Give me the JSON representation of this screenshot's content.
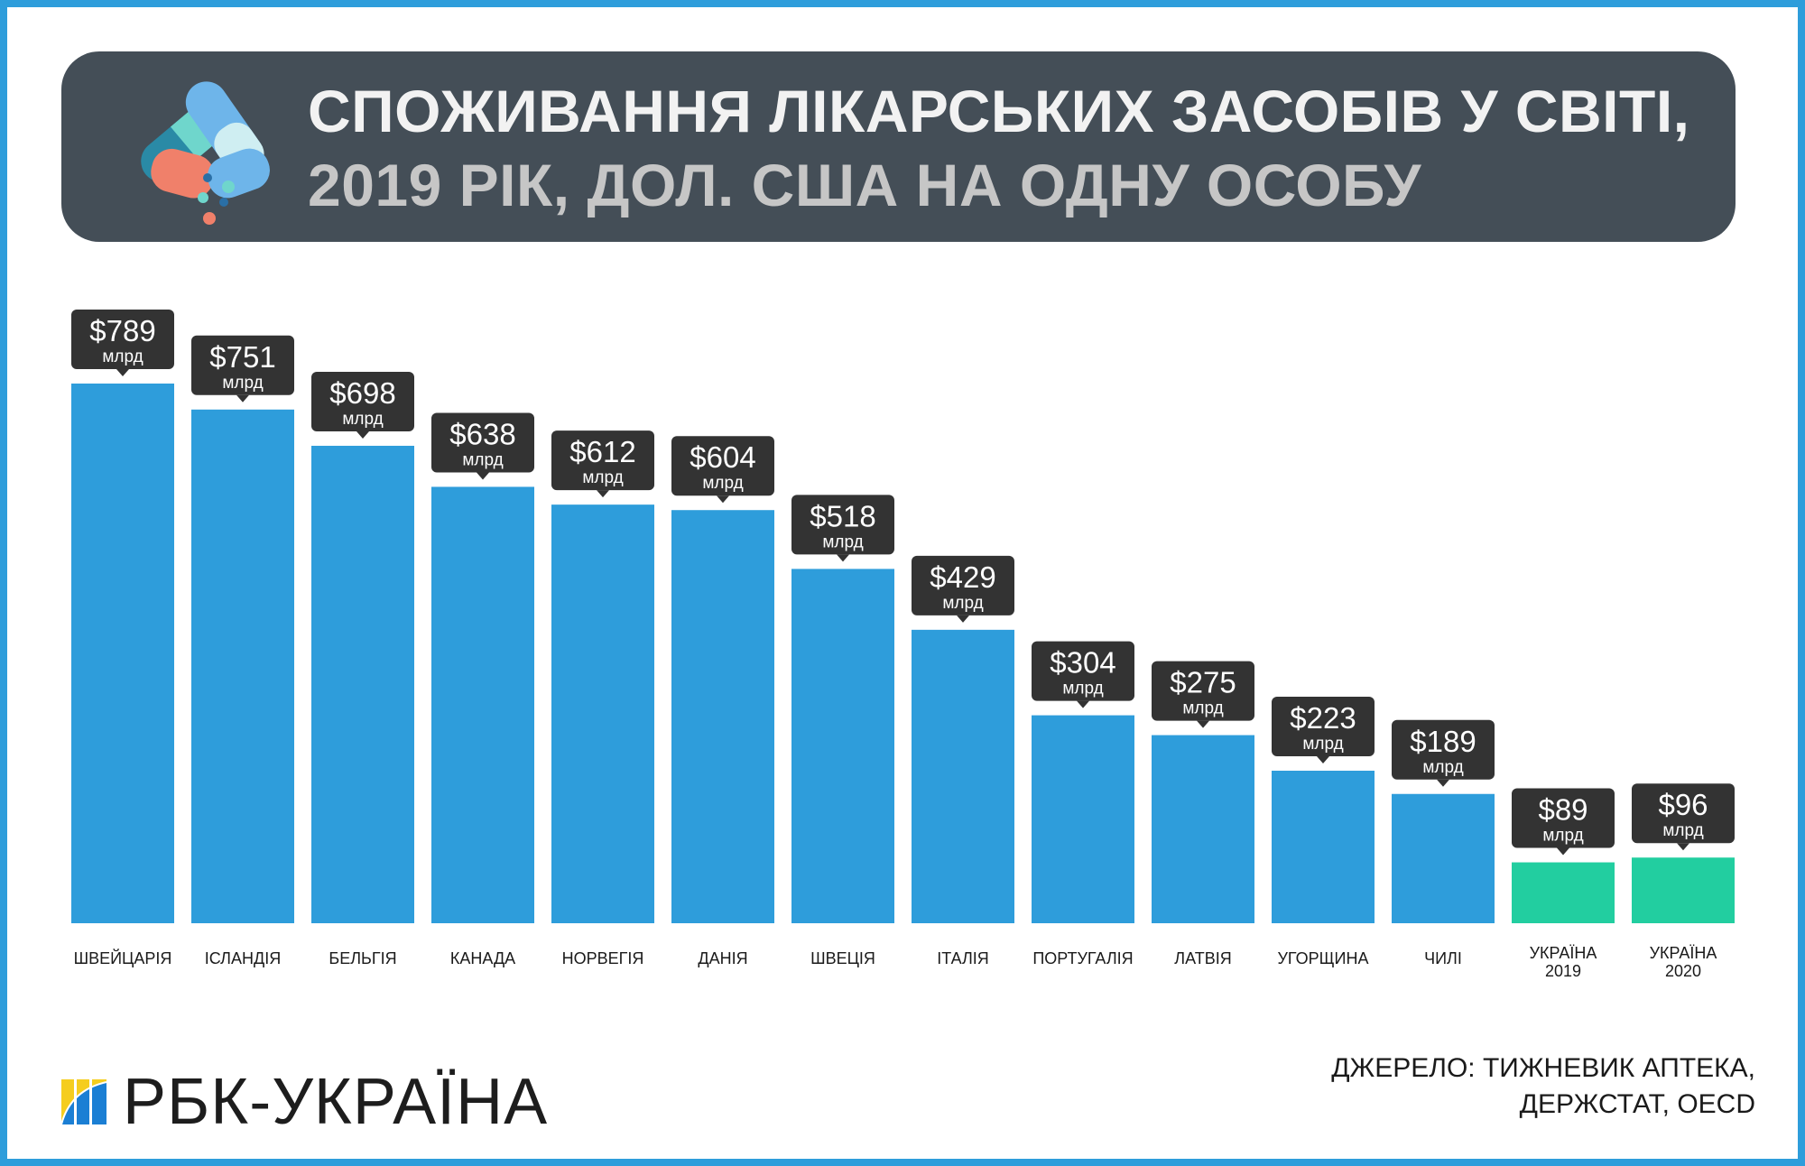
{
  "header": {
    "title_line1": "СПОЖИВАННЯ ЛІКАРСЬКИХ ЗАСОБІВ У СВІТІ,",
    "title_line2": "2019 РІК, ДОЛ. США НА ОДНУ ОСОБУ",
    "icon": "pills-icon"
  },
  "chart_data": {
    "type": "bar",
    "title": "СПОЖИВАННЯ ЛІКАРСЬКИХ ЗАСОБІВ У СВІТІ, 2019 РІК, ДОЛ. США НА ОДНУ ОСОБУ",
    "categories": [
      "ШВЕЙЦАРІЯ",
      "ІСЛАНДІЯ",
      "БЕЛЬГІЯ",
      "КАНАДА",
      "НОРВЕГІЯ",
      "ДАНІЯ",
      "ШВЕЦІЯ",
      "ІТАЛІЯ",
      "ПОРТУГАЛІЯ",
      "ЛАТВІЯ",
      "УГОРЩИНА",
      "ЧИЛІ",
      [
        "УКРАЇНА",
        "2019"
      ],
      [
        "УКРАЇНА",
        "2020"
      ]
    ],
    "values": [
      789,
      751,
      698,
      638,
      612,
      604,
      518,
      429,
      304,
      275,
      223,
      189,
      89,
      96
    ],
    "value_labels": [
      "$789",
      "$751",
      "$698",
      "$638",
      "$612",
      "$604",
      "$518",
      "$429",
      "$304",
      "$275",
      "$223",
      "$189",
      "$89",
      "$96"
    ],
    "unit_label": "млрд",
    "colors": {
      "default": "#2e9ddb",
      "highlight": "#22cea0",
      "callout": "#333333"
    },
    "highlight_indices": [
      12,
      13
    ],
    "ylim": [
      0,
      789
    ],
    "grid": false,
    "legend": "none"
  },
  "footer": {
    "brand": "РБК-УКРАЇНА",
    "source_line1": "ДЖЕРЕЛО: ТИЖНЕВИК АПТЕКА,",
    "source_line2": "ДЕРЖСТАТ, OECD"
  }
}
